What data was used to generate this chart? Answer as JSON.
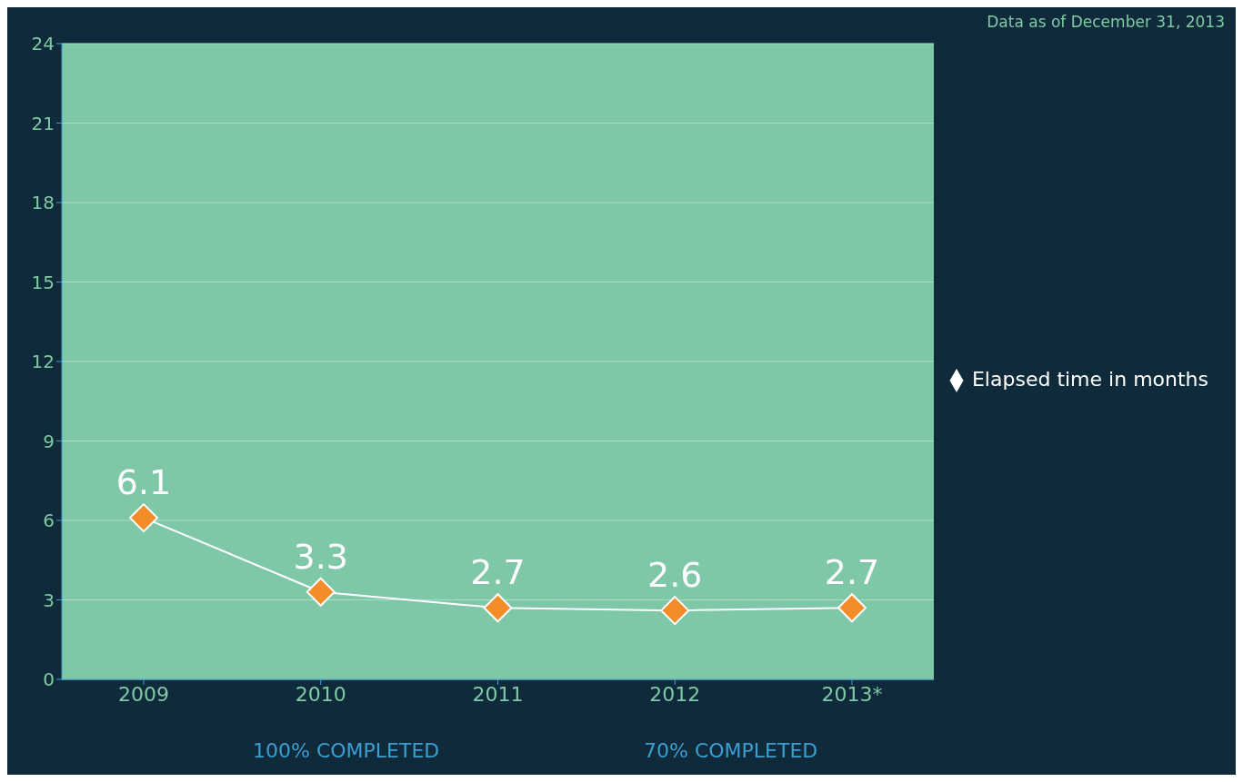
{
  "chart_data": {
    "type": "line",
    "categories": [
      "2009",
      "2010",
      "2011",
      "2012",
      "2013*"
    ],
    "series": [
      {
        "name": "Elapsed time in months",
        "color": "#f28c28",
        "values": [
          6.1,
          3.3,
          2.7,
          2.6,
          2.7
        ]
      }
    ],
    "ylim": [
      0,
      24
    ],
    "yticks": [
      0,
      3,
      6,
      9,
      12,
      15,
      18,
      21,
      24
    ],
    "grid": "y",
    "data_labels": true,
    "marker": "diamond",
    "legend": "right",
    "annotations": [
      "Data as of December 31, 2013",
      "100% COMPLETED",
      "70% COMPLETED"
    ]
  }
}
